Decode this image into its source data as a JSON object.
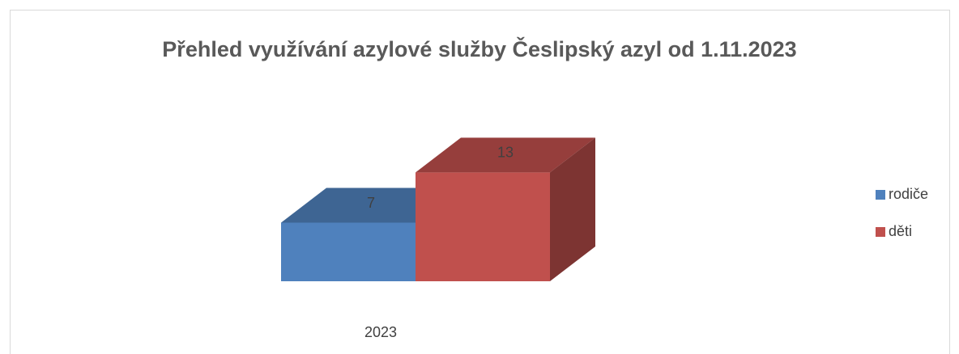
{
  "chart_data": {
    "type": "bar3d",
    "title": "Přehled využívání azylové služby Česlipský azyl od 1.11.2023",
    "categories": [
      "2023"
    ],
    "series": [
      {
        "name": "rodiče",
        "color": "#4f81bd",
        "values": [
          7
        ]
      },
      {
        "name": "děti",
        "color": "#c0504d",
        "values": [
          13
        ]
      }
    ],
    "ylim": [
      0,
      14
    ],
    "legend": "right"
  }
}
